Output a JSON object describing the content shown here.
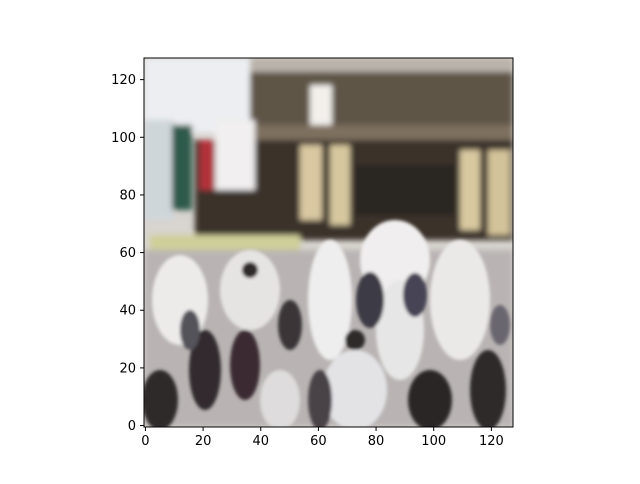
{
  "figure": {
    "image_description_hidden": "",
    "x_ticks": [
      "0",
      "20",
      "40",
      "60",
      "80",
      "100",
      "120"
    ],
    "y_ticks": [
      "0",
      "20",
      "40",
      "60",
      "80",
      "100",
      "120"
    ],
    "x_range": [
      -0.5,
      127.5
    ],
    "y_range": [
      127.5,
      -0.5
    ],
    "x_tick_values": [
      0,
      20,
      40,
      60,
      80,
      100,
      120
    ],
    "y_tick_values": [
      0,
      20,
      40,
      60,
      80,
      100,
      120
    ],
    "colors": {
      "sky": "#e8e9ec",
      "building": "#5d5346",
      "awning": "#7a6c5c",
      "pillar": "#d6c79e",
      "window_dark": "#2c2824",
      "crowd_light": "#e9e7e6",
      "crowd_dark": "#2f2a2d",
      "crowd_mid": "#8d8a90",
      "red_flag": "#b3303a",
      "green_sign": "#2e5b4f"
    }
  }
}
